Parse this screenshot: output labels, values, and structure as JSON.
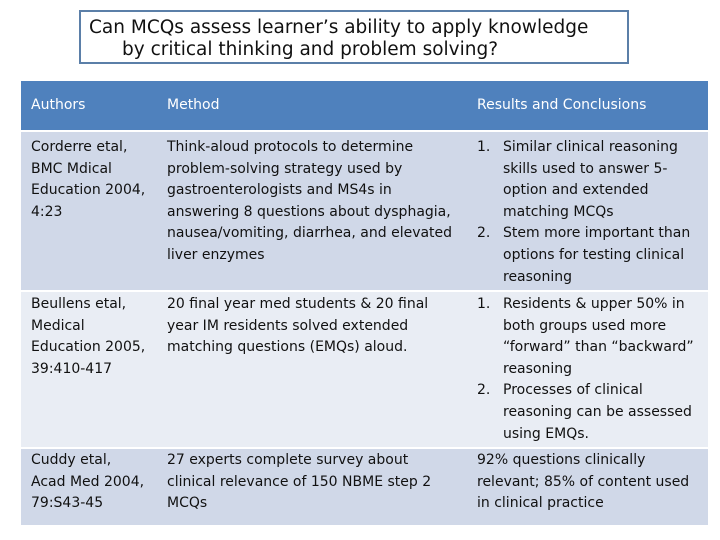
{
  "title": {
    "line1": "Can MCQs assess learner’s ability to apply knowledge",
    "line2": "by critical thinking and problem solving?"
  },
  "colors": {
    "header": "#4f81bd",
    "row_dark": "#d0d8e8",
    "row_light": "#e9edf4",
    "title_border": "#5b7fa8"
  },
  "table": {
    "headers": [
      "Authors",
      "Method",
      "Results and Conclusions"
    ],
    "rows": [
      {
        "authors": "Corderre etal, BMC Mdical Education 2004, 4:23",
        "method": "Think-aloud protocols to determine problem-solving strategy used by gastroenterologists and MS4s in answering 8 questions about dysphagia, nausea/vomiting, diarrhea, and elevated liver enzymes",
        "results": [
          {
            "num": "1.",
            "text": "Similar clinical reasoning skills used to answer 5-option and extended matching MCQs"
          },
          {
            "num": "2.",
            "text": "Stem more important than options for testing clinical reasoning"
          }
        ]
      },
      {
        "authors": "Beullens etal, Medical Education 2005, 39:410-417",
        "method": "20 final year med students & 20 final year IM residents solved extended matching questions (EMQs) aloud.",
        "results": [
          {
            "num": "1.",
            "text": "Residents & upper 50% in both groups used more “forward” than “backward” reasoning"
          },
          {
            "num": "2.",
            "text": "Processes of clinical reasoning can be assessed using EMQs."
          }
        ]
      },
      {
        "authors": "Cuddy etal, Acad Med 2004, 79:S43-45",
        "method": "27 experts complete survey about clinical relevance of 150 NBME step 2 MCQs",
        "results_text": "92% questions clinically relevant; 85% of content used in clinical practice"
      }
    ]
  }
}
